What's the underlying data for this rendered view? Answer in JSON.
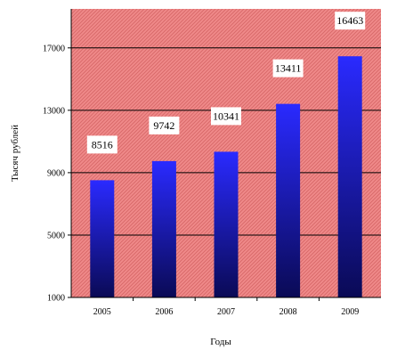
{
  "chart_data": {
    "type": "bar",
    "title": "",
    "categories": [
      "2005",
      "2006",
      "2007",
      "2008",
      "2009"
    ],
    "series": [
      {
        "values": [
          8516,
          9742,
          10341,
          13411,
          16463
        ]
      }
    ],
    "xlabel": "Годы",
    "ylabel": "Тысяч рублей",
    "ylim": [
      1000,
      19500
    ],
    "yticks": [
      1000,
      5000,
      9000,
      13000,
      17000
    ],
    "ytick_labels": [
      "1000",
      "5000",
      "9000",
      "13000",
      "17000"
    ],
    "grid": true,
    "legend": "none",
    "colors": {
      "plot_background": "#f08a8a",
      "hatch": "#d96a6a",
      "bar_top": "#2a2aff",
      "bar_bottom": "#0a0a55",
      "label_box": "#ffffff",
      "gridline": "#000000"
    }
  }
}
